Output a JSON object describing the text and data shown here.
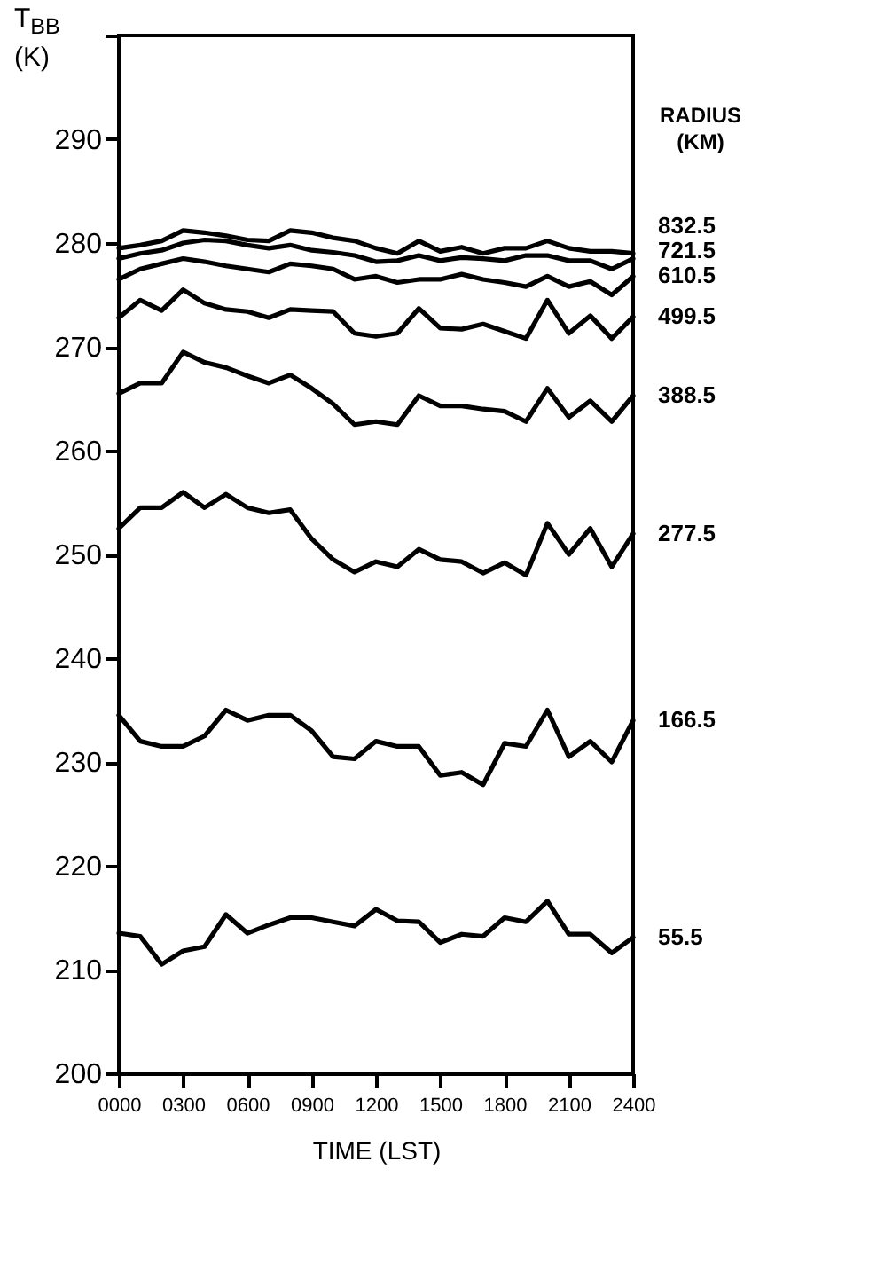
{
  "chart_data": {
    "type": "line",
    "xlabel": "TIME (LST)",
    "ylabel": "T$_{BB}$ (K)",
    "legend_title": "RADIUS (KM)",
    "x": [
      0,
      100,
      200,
      300,
      400,
      500,
      600,
      700,
      800,
      900,
      1000,
      1100,
      1200,
      1300,
      1400,
      1500,
      1600,
      1700,
      1800,
      1900,
      2000,
      2100,
      2200,
      2300,
      2400
    ],
    "xlim": [
      0,
      2400
    ],
    "xticks": [
      {
        "value": 0,
        "label": "0000"
      },
      {
        "value": 300,
        "label": "0300"
      },
      {
        "value": 600,
        "label": "0600"
      },
      {
        "value": 900,
        "label": "0900"
      },
      {
        "value": 1200,
        "label": "1200"
      },
      {
        "value": 1500,
        "label": "1500"
      },
      {
        "value": 1800,
        "label": "1800"
      },
      {
        "value": 2100,
        "label": "2100"
      },
      {
        "value": 2400,
        "label": "2400"
      }
    ],
    "ylim": [
      200,
      300
    ],
    "yticks": [
      200,
      210,
      220,
      230,
      240,
      250,
      260,
      270,
      280,
      290,
      {
        "value": 300,
        "label": null
      }
    ],
    "series": [
      {
        "name": "832.5",
        "color": "#000000",
        "values": [
          279.5,
          279.8,
          280.2,
          281.2,
          281,
          280.7,
          280.3,
          280.2,
          281.2,
          281,
          280.5,
          280.2,
          279.5,
          279,
          280.2,
          279.2,
          279.6,
          279,
          279.5,
          279.5,
          280.2,
          279.5,
          279.2,
          279.2,
          279
        ]
      },
      {
        "name": "721.5",
        "color": "#000000",
        "values": [
          278.5,
          279,
          279.3,
          280,
          280.3,
          280.2,
          279.8,
          279.5,
          279.8,
          279.3,
          279.1,
          278.8,
          278.2,
          278.3,
          278.8,
          278.3,
          278.6,
          278.5,
          278.3,
          278.8,
          278.8,
          278.3,
          278.3,
          277.5,
          278.5
        ]
      },
      {
        "name": "610.5",
        "color": "#000000",
        "values": [
          276.5,
          277.5,
          278,
          278.5,
          278.2,
          277.8,
          277.5,
          277.2,
          278,
          277.8,
          277.5,
          276.5,
          276.8,
          276.2,
          276.5,
          276.5,
          277,
          276.5,
          276.2,
          275.8,
          276.8,
          275.8,
          276.3,
          275,
          276.8
        ]
      },
      {
        "name": "499.5",
        "color": "#000000",
        "values": [
          272.8,
          274.5,
          273.5,
          275.5,
          274.2,
          273.6,
          273.4,
          272.8,
          273.6,
          273.5,
          273.4,
          271.3,
          271,
          271.3,
          273.7,
          271.8,
          271.7,
          272.2,
          271.5,
          270.8,
          274.5,
          271.3,
          273,
          270.8,
          272.9
        ]
      },
      {
        "name": "388.5",
        "color": "#000000",
        "values": [
          265.5,
          266.5,
          266.5,
          269.5,
          268.5,
          268,
          267.2,
          266.5,
          267.3,
          266,
          264.5,
          262.5,
          262.8,
          262.5,
          265.3,
          264.3,
          264.3,
          264,
          263.8,
          262.8,
          266,
          263.2,
          264.8,
          262.8,
          265.3
        ]
      },
      {
        "name": "277.5",
        "color": "#000000",
        "values": [
          252.5,
          254.5,
          254.5,
          256,
          254.5,
          255.8,
          254.5,
          254,
          254.3,
          251.5,
          249.5,
          248.3,
          249.3,
          248.8,
          250.5,
          249.5,
          249.3,
          248.2,
          249.2,
          248,
          253,
          250,
          252.5,
          248.8,
          252
        ]
      },
      {
        "name": "166.5",
        "color": "#000000",
        "values": [
          234.5,
          232,
          231.5,
          231.5,
          232.5,
          235,
          234,
          234.5,
          234.5,
          233,
          230.5,
          230.3,
          232,
          231.5,
          231.5,
          228.7,
          229,
          227.8,
          231.8,
          231.5,
          235,
          230.5,
          232,
          230,
          234
        ]
      },
      {
        "name": "55.5",
        "color": "#000000",
        "values": [
          213.5,
          213.2,
          210.5,
          211.8,
          212.2,
          215.3,
          213.5,
          214.3,
          215,
          215,
          214.6,
          214.2,
          215.8,
          214.7,
          214.6,
          212.6,
          213.4,
          213.2,
          215,
          214.6,
          216.6,
          213.4,
          213.4,
          211.6,
          213.1
        ]
      }
    ]
  }
}
